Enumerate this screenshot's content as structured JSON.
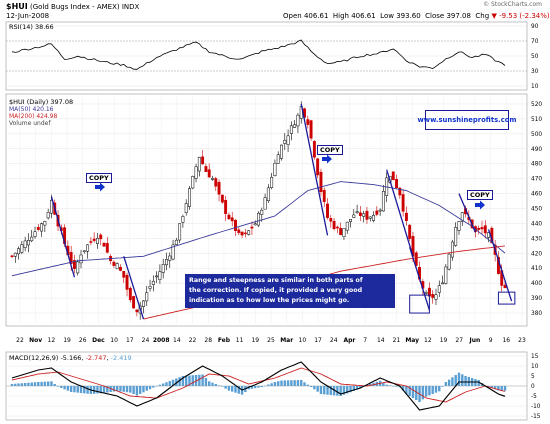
{
  "header": {
    "symbol": "$HUI",
    "name": "(Gold Bugs Index - AMEX)",
    "exchange": "INDX",
    "date": "12-Jun-2008",
    "open_label": "Open",
    "open": "406.61",
    "high_label": "High",
    "high": "406.61",
    "low_label": "Low",
    "low": "393.60",
    "close_label": "Close",
    "close": "397.08",
    "chg_label": "Chg",
    "chg": "-9.53 (-2.34%)",
    "chg_arrow": "▼",
    "watermark": "© StockCharts.com"
  },
  "rsi_panel": {
    "legend": "RSI(14) 38.66",
    "ticks": [
      "90",
      "70",
      "50",
      "30",
      "10"
    ]
  },
  "price_panel": {
    "legend_main": "$HUI (Daily) 397.08",
    "legend_ma50": "MA(50) 420.16",
    "legend_ma200": "MA(200) 424.98",
    "legend_volume": "Volume undef",
    "url_box": "www.sunshineprofits.com",
    "copy_label": "COPY",
    "note_lines": [
      "Range and steepness are similar in both parts of",
      "the correction. If copied, it provided a very good",
      "indication as to how low the prices might go."
    ]
  },
  "macd_panel": {
    "legend_name": "MACD(12,26,9)",
    "legend_macd": "-5.166",
    "legend_signal": "-2.747",
    "legend_hist": "-2.419"
  },
  "colors": {
    "up": "#000000",
    "down": "#cc0000",
    "ma50": "#3a3a9a",
    "ma200": "#cc2222",
    "annotation": "#1a1a99",
    "copy_arrow": "#1133cc",
    "hist": "#5a9fd4",
    "macd": "#000000",
    "signal": "#cc2222",
    "rsi": "#000000",
    "url_text": "#1133cc"
  },
  "chart_data": {
    "type": "candlestick",
    "title": "$HUI (Gold Bugs Index - AMEX) INDX",
    "x_tick_labels": [
      "22",
      "Nov",
      "12",
      "19",
      "26",
      "Dec",
      "10",
      "17",
      "24",
      "2008",
      "14",
      "22",
      "28",
      "Feb",
      "11",
      "19",
      "25",
      "Mar",
      "10",
      "17",
      "24",
      "Apr",
      "7",
      "14",
      "21",
      "May",
      "12",
      "19",
      "27",
      "Jun",
      "9",
      "16",
      "23"
    ],
    "y_ticks": [
      380,
      390,
      400,
      410,
      420,
      430,
      440,
      450,
      460,
      470,
      480,
      490,
      500,
      510,
      520
    ],
    "ylim": [
      374,
      524
    ],
    "price_close_waypoints": [
      [
        0,
        418
      ],
      [
        5,
        430
      ],
      [
        10,
        442
      ],
      [
        12,
        455
      ],
      [
        14,
        440
      ],
      [
        17,
        420
      ],
      [
        19,
        408
      ],
      [
        21,
        420
      ],
      [
        24,
        428
      ],
      [
        26,
        432
      ],
      [
        28,
        426
      ],
      [
        30,
        415
      ],
      [
        32,
        412
      ],
      [
        34,
        404
      ],
      [
        36,
        388
      ],
      [
        38,
        382
      ],
      [
        40,
        388
      ],
      [
        42,
        398
      ],
      [
        45,
        408
      ],
      [
        48,
        420
      ],
      [
        50,
        430
      ],
      [
        52,
        446
      ],
      [
        54,
        462
      ],
      [
        56,
        478
      ],
      [
        57,
        485
      ],
      [
        59,
        475
      ],
      [
        61,
        470
      ],
      [
        63,
        458
      ],
      [
        65,
        448
      ],
      [
        67,
        440
      ],
      [
        69,
        432
      ],
      [
        71,
        432
      ],
      [
        74,
        440
      ],
      [
        77,
        456
      ],
      [
        79,
        472
      ],
      [
        81,
        488
      ],
      [
        83,
        496
      ],
      [
        85,
        504
      ],
      [
        87,
        512
      ],
      [
        88,
        518
      ],
      [
        90,
        508
      ],
      [
        92,
        486
      ],
      [
        94,
        462
      ],
      [
        96,
        444
      ],
      [
        98,
        438
      ],
      [
        100,
        434
      ],
      [
        102,
        440
      ],
      [
        104,
        446
      ],
      [
        106,
        446
      ],
      [
        108,
        444
      ],
      [
        110,
        446
      ],
      [
        112,
        450
      ],
      [
        114,
        472
      ],
      [
        116,
        470
      ],
      [
        118,
        460
      ],
      [
        120,
        440
      ],
      [
        122,
        418
      ],
      [
        124,
        402
      ],
      [
        126,
        392
      ],
      [
        127,
        390
      ],
      [
        129,
        392
      ],
      [
        131,
        402
      ],
      [
        133,
        420
      ],
      [
        135,
        438
      ],
      [
        137,
        448
      ],
      [
        139,
        442
      ],
      [
        141,
        434
      ],
      [
        143,
        436
      ],
      [
        145,
        432
      ],
      [
        147,
        418
      ],
      [
        148,
        408
      ],
      [
        149,
        400
      ],
      [
        150,
        397.08
      ]
    ],
    "ma50": [
      [
        0,
        405
      ],
      [
        20,
        415
      ],
      [
        40,
        418
      ],
      [
        60,
        432
      ],
      [
        80,
        445
      ],
      [
        90,
        462
      ],
      [
        100,
        468
      ],
      [
        110,
        466
      ],
      [
        120,
        462
      ],
      [
        130,
        452
      ],
      [
        140,
        438
      ],
      [
        150,
        420.16
      ]
    ],
    "ma200": [
      [
        40,
        376
      ],
      [
        60,
        386
      ],
      [
        80,
        396
      ],
      [
        100,
        408
      ],
      [
        120,
        416
      ],
      [
        135,
        421
      ],
      [
        150,
        424.98
      ]
    ],
    "rsi": {
      "ylim": [
        10,
        90
      ],
      "values": [
        [
          0,
          55
        ],
        [
          8,
          62
        ],
        [
          12,
          66
        ],
        [
          16,
          46
        ],
        [
          20,
          50
        ],
        [
          28,
          42
        ],
        [
          34,
          38
        ],
        [
          38,
          32
        ],
        [
          44,
          48
        ],
        [
          52,
          62
        ],
        [
          56,
          68
        ],
        [
          60,
          56
        ],
        [
          66,
          48
        ],
        [
          70,
          46
        ],
        [
          76,
          56
        ],
        [
          82,
          62
        ],
        [
          88,
          70
        ],
        [
          92,
          52
        ],
        [
          96,
          40
        ],
        [
          100,
          42
        ],
        [
          106,
          50
        ],
        [
          112,
          54
        ],
        [
          116,
          60
        ],
        [
          120,
          44
        ],
        [
          124,
          36
        ],
        [
          128,
          34
        ],
        [
          132,
          46
        ],
        [
          136,
          56
        ],
        [
          140,
          48
        ],
        [
          144,
          52
        ],
        [
          148,
          42
        ],
        [
          150,
          38.66
        ]
      ]
    },
    "macd": {
      "ylim": [
        -15,
        15
      ],
      "y_ticks": [
        15,
        10,
        5,
        0,
        -5,
        -10,
        -15
      ],
      "macd": [
        [
          0,
          4
        ],
        [
          8,
          8
        ],
        [
          12,
          9
        ],
        [
          18,
          2
        ],
        [
          24,
          -2
        ],
        [
          32,
          -5
        ],
        [
          38,
          -10
        ],
        [
          44,
          -6
        ],
        [
          52,
          4
        ],
        [
          58,
          10
        ],
        [
          64,
          5
        ],
        [
          70,
          -2
        ],
        [
          76,
          2
        ],
        [
          82,
          8
        ],
        [
          88,
          12
        ],
        [
          94,
          2
        ],
        [
          100,
          -4
        ],
        [
          106,
          -1
        ],
        [
          112,
          4
        ],
        [
          118,
          0
        ],
        [
          124,
          -12
        ],
        [
          130,
          -10
        ],
        [
          136,
          2
        ],
        [
          142,
          2
        ],
        [
          148,
          -4
        ],
        [
          150,
          -5.166
        ]
      ],
      "signal": [
        [
          0,
          3
        ],
        [
          8,
          6
        ],
        [
          14,
          7
        ],
        [
          20,
          4
        ],
        [
          28,
          0
        ],
        [
          36,
          -5
        ],
        [
          44,
          -6
        ],
        [
          52,
          -1
        ],
        [
          60,
          6
        ],
        [
          66,
          5
        ],
        [
          72,
          1
        ],
        [
          80,
          4
        ],
        [
          88,
          9
        ],
        [
          94,
          6
        ],
        [
          100,
          1
        ],
        [
          108,
          0
        ],
        [
          114,
          2
        ],
        [
          120,
          0
        ],
        [
          126,
          -6
        ],
        [
          132,
          -8
        ],
        [
          138,
          -3
        ],
        [
          144,
          0
        ],
        [
          150,
          -2.747
        ]
      ]
    }
  }
}
